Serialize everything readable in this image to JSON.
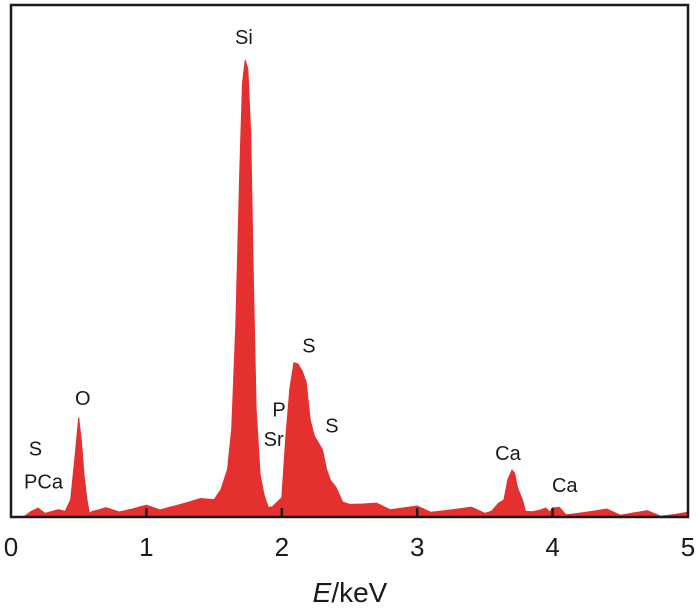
{
  "chart_data": {
    "type": "area",
    "title": "",
    "xlabel_italic": "E",
    "xlabel_unit": "/keV",
    "ylabel": "",
    "xlim": [
      0,
      5
    ],
    "ylim": [
      0,
      100
    ],
    "x_ticks": [
      "0",
      "1",
      "2",
      "3",
      "4",
      "5"
    ],
    "grid": false,
    "fill_color": "#e53030",
    "series": [
      {
        "x": [
          0.0,
          0.1,
          0.15,
          0.2,
          0.25,
          0.3,
          0.35,
          0.4,
          0.44,
          0.47,
          0.5,
          0.52,
          0.54,
          0.56,
          0.58,
          0.6,
          0.65,
          0.7,
          0.8,
          0.9,
          1.0,
          1.1,
          1.2,
          1.3,
          1.4,
          1.5,
          1.55,
          1.6,
          1.63,
          1.66,
          1.69,
          1.71,
          1.73,
          1.75,
          1.77,
          1.79,
          1.81,
          1.84,
          1.87,
          1.9,
          1.93,
          1.96,
          2.0,
          2.03,
          2.06,
          2.09,
          2.12,
          2.15,
          2.18,
          2.21,
          2.24,
          2.27,
          2.3,
          2.33,
          2.36,
          2.4,
          2.45,
          2.5,
          2.6,
          2.7,
          2.8,
          2.9,
          3.0,
          3.1,
          3.2,
          3.3,
          3.4,
          3.5,
          3.55,
          3.6,
          3.64,
          3.67,
          3.7,
          3.72,
          3.74,
          3.76,
          3.78,
          3.8,
          3.85,
          3.9,
          3.95,
          3.98,
          4.0,
          4.05,
          4.1,
          4.2,
          4.3,
          4.4,
          4.5,
          4.6,
          4.7,
          4.8,
          4.9,
          5.0
        ],
        "values": [
          0.3,
          0.4,
          1.0,
          1.2,
          1.3,
          1.2,
          1.1,
          2.0,
          4.0,
          12.0,
          21.0,
          17.0,
          9.0,
          3.5,
          1.5,
          1.5,
          1.3,
          1.3,
          1.6,
          1.8,
          2.1,
          2.3,
          2.6,
          2.9,
          3.3,
          4.3,
          6.0,
          10.0,
          20.0,
          42.0,
          76.0,
          95.0,
          100.0,
          98.0,
          84.0,
          52.0,
          24.0,
          9.0,
          4.0,
          2.6,
          2.2,
          2.6,
          5.0,
          18.0,
          28.0,
          33.0,
          34.0,
          32.0,
          29.0,
          22.0,
          18.0,
          16.0,
          14.0,
          11.0,
          8.0,
          6.0,
          4.0,
          3.0,
          2.6,
          2.3,
          2.1,
          2.0,
          1.9,
          1.8,
          1.6,
          1.5,
          1.4,
          1.3,
          1.3,
          2.5,
          4.5,
          8.5,
          10.0,
          8.8,
          7.0,
          5.0,
          3.0,
          2.0,
          1.4,
          1.2,
          1.2,
          1.6,
          2.0,
          1.6,
          1.2,
          1.1,
          1.0,
          1.0,
          0.9,
          0.9,
          0.9,
          0.9,
          0.8,
          0.8
        ]
      }
    ],
    "annotations": [
      {
        "text": "Si",
        "x": 1.72,
        "y": 103.5
      },
      {
        "text": "O",
        "x": 0.53,
        "y": 24.5
      },
      {
        "text": "S",
        "x": 0.18,
        "y": 13.5
      },
      {
        "text": "PCa",
        "x": 0.24,
        "y": 6.2
      },
      {
        "text": "P",
        "x": 1.98,
        "y": 22.0
      },
      {
        "text": "Sr",
        "x": 1.94,
        "y": 15.5
      },
      {
        "text": "S",
        "x": 2.2,
        "y": 36.0
      },
      {
        "text": "S",
        "x": 2.37,
        "y": 18.5
      },
      {
        "text": "Ca",
        "x": 3.67,
        "y": 12.5
      },
      {
        "text": "Ca",
        "x": 4.09,
        "y": 5.5
      }
    ]
  }
}
